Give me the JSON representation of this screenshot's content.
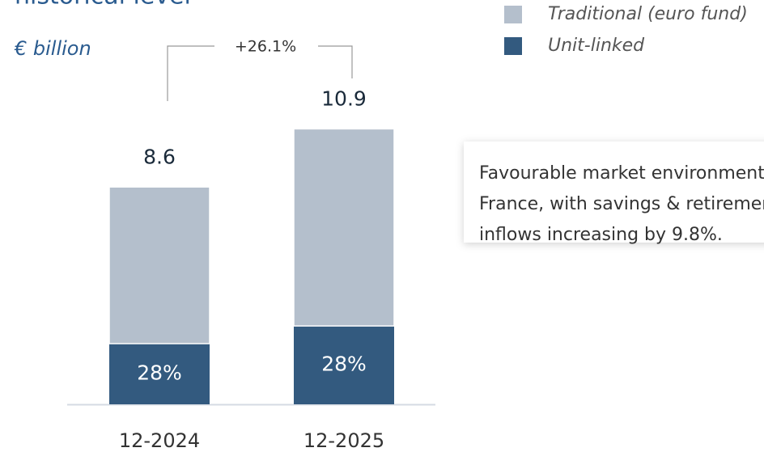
{
  "chart_data": {
    "type": "bar",
    "stacked": true,
    "title": "historical level",
    "unit_label": "€ billion",
    "categories": [
      "12-2024",
      "12-2025"
    ],
    "series": [
      {
        "name": "Unit-linked",
        "color": "#335a7f",
        "values": [
          2.4,
          3.1
        ],
        "share_labels": [
          "28%",
          "28%"
        ]
      },
      {
        "name": "Traditional (euro fund)",
        "color": "#b4bfcc",
        "values": [
          6.2,
          7.8
        ]
      }
    ],
    "totals": [
      8.6,
      10.9
    ],
    "growth_annotation": "+26.1%",
    "callout": [
      "Favourable market environment in",
      "France, with savings & retirement",
      "inflows increasing by 9.8%."
    ],
    "ylim": [
      0,
      16
    ]
  }
}
